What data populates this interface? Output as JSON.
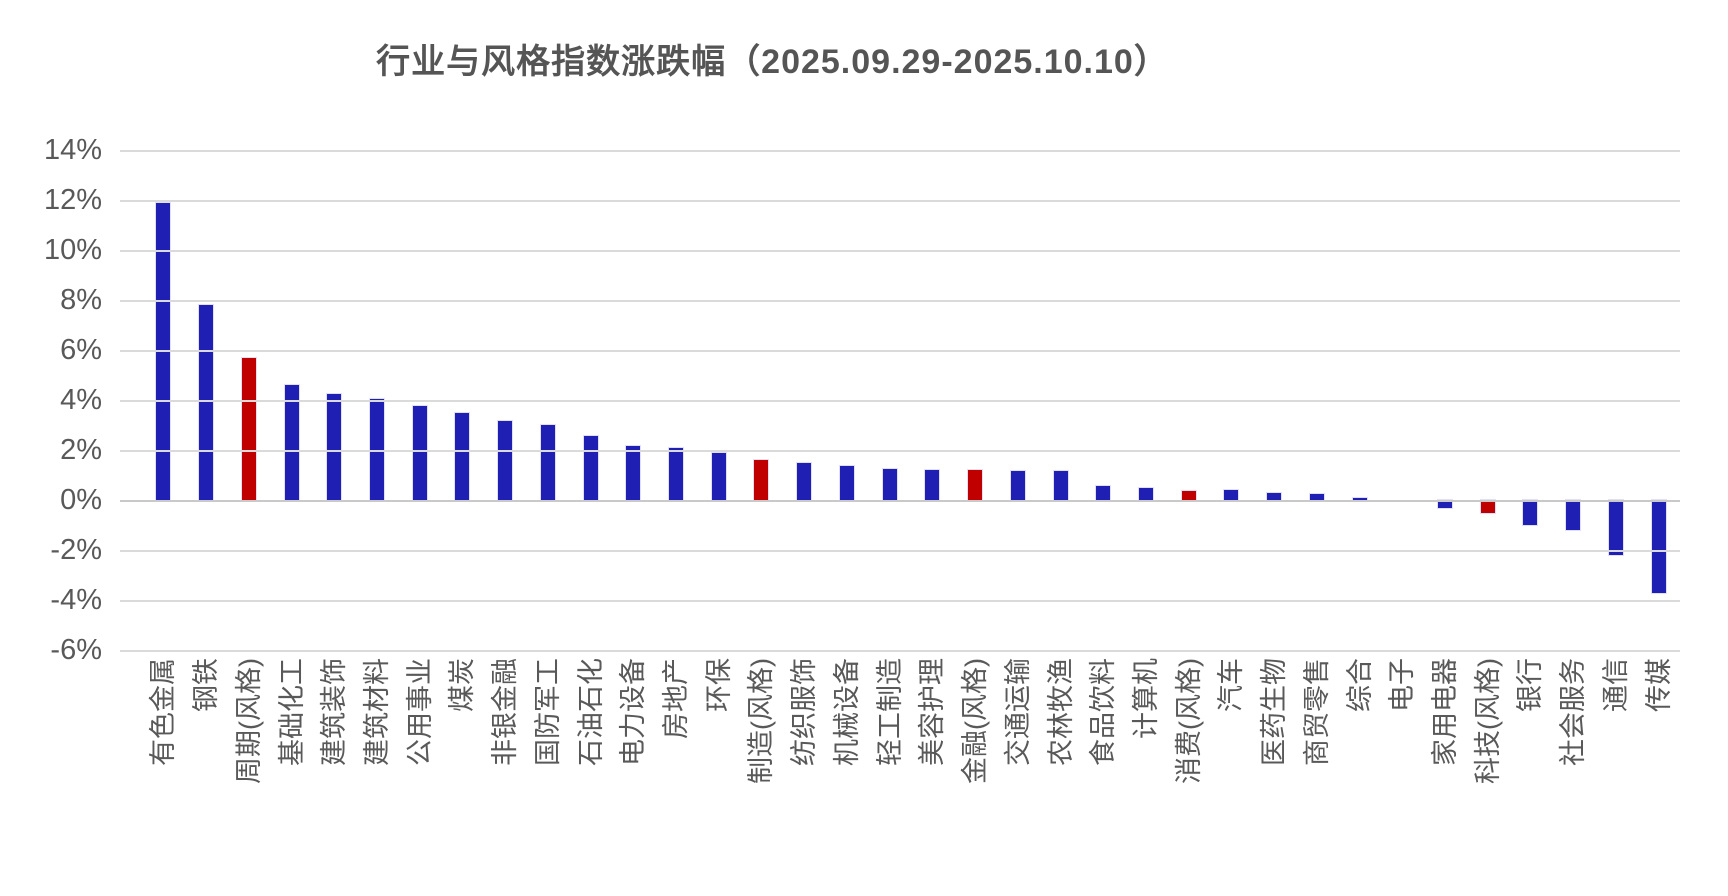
{
  "title": "行业与风格指数涨跌幅（2025.09.29-2025.10.10）",
  "chart_data": {
    "type": "bar",
    "title": "行业与风格指数涨跌幅（2025.09.29-2025.10.10）",
    "xlabel": "",
    "ylabel": "",
    "ylim": [
      -6,
      14
    ],
    "grid": true,
    "legend_position": "none",
    "y_ticks": [
      "14%",
      "12%",
      "10%",
      "8%",
      "6%",
      "4%",
      "2%",
      "0%",
      "-2%",
      "-4%",
      "-6%"
    ],
    "categories": [
      "有色金属",
      "钢铁",
      "周期(风格)",
      "基础化工",
      "建筑装饰",
      "建筑材料",
      "公用事业",
      "煤炭",
      "非银金融",
      "国防军工",
      "石油石化",
      "电力设备",
      "房地产",
      "环保",
      "制造(风格)",
      "纺织服饰",
      "机械设备",
      "轻工制造",
      "美容护理",
      "金融(风格)",
      "交通运输",
      "农林牧渔",
      "食品饮料",
      "计算机",
      "消费(风格)",
      "汽车",
      "医药生物",
      "商贸零售",
      "综合",
      "电子",
      "家用电器",
      "科技(风格)",
      "银行",
      "社会服务",
      "通信",
      "传媒"
    ],
    "values": [
      11.9,
      7.8,
      5.7,
      4.6,
      4.25,
      4.05,
      3.75,
      3.5,
      3.15,
      3.0,
      2.55,
      2.15,
      2.1,
      1.9,
      1.6,
      1.5,
      1.35,
      1.25,
      1.2,
      1.2,
      1.15,
      1.15,
      0.55,
      0.5,
      0.35,
      0.4,
      0.3,
      0.25,
      0.1,
      0.0,
      -0.3,
      -0.5,
      -1.0,
      -1.2,
      -2.2,
      -3.7
    ],
    "style_categories": [
      "周期(风格)",
      "制造(风格)",
      "金融(风格)",
      "消费(风格)",
      "科技(风格)"
    ],
    "colors": {
      "industry_bar": "#1f1fb4",
      "style_bar": "#c00000",
      "axis_text": "#595959",
      "title_text": "#555555",
      "gridline": "#dadada"
    }
  }
}
